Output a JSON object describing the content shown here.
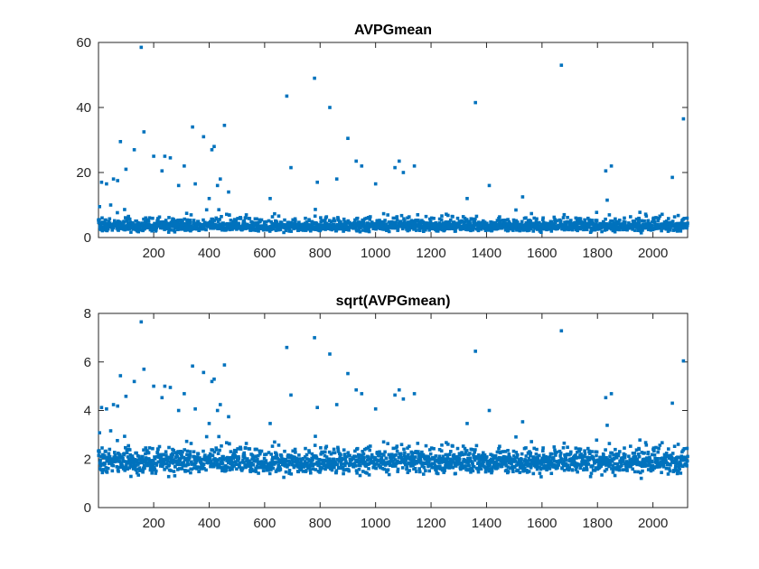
{
  "chart_data": [
    {
      "type": "scatter",
      "title": "AVPGmean",
      "xlabel": "",
      "ylabel": "",
      "xlim": [
        1,
        2125
      ],
      "ylim": [
        0,
        60
      ],
      "xticks": [
        200,
        400,
        600,
        800,
        1000,
        1200,
        1400,
        1600,
        1800,
        2000
      ],
      "yticks": [
        0,
        20,
        40,
        60
      ],
      "grid": false,
      "marker_color": "#0072BD",
      "n_points": 2125,
      "baseline": {
        "typical_range": [
          1.5,
          6.5
        ],
        "center": 3.6
      },
      "outliers": [
        {
          "x": 5,
          "y": 9.5
        },
        {
          "x": 12,
          "y": 17
        },
        {
          "x": 30,
          "y": 16.5
        },
        {
          "x": 45,
          "y": 10
        },
        {
          "x": 55,
          "y": 18
        },
        {
          "x": 70,
          "y": 17.5
        },
        {
          "x": 80,
          "y": 29.5
        },
        {
          "x": 100,
          "y": 21
        },
        {
          "x": 130,
          "y": 27
        },
        {
          "x": 155,
          "y": 58.5
        },
        {
          "x": 165,
          "y": 32.5
        },
        {
          "x": 200,
          "y": 25
        },
        {
          "x": 230,
          "y": 20.5
        },
        {
          "x": 240,
          "y": 25
        },
        {
          "x": 260,
          "y": 24.5
        },
        {
          "x": 290,
          "y": 16
        },
        {
          "x": 310,
          "y": 22
        },
        {
          "x": 340,
          "y": 34
        },
        {
          "x": 350,
          "y": 16.5
        },
        {
          "x": 380,
          "y": 31
        },
        {
          "x": 400,
          "y": 12
        },
        {
          "x": 410,
          "y": 27
        },
        {
          "x": 418,
          "y": 28
        },
        {
          "x": 430,
          "y": 16
        },
        {
          "x": 440,
          "y": 18
        },
        {
          "x": 455,
          "y": 34.5
        },
        {
          "x": 470,
          "y": 14
        },
        {
          "x": 620,
          "y": 12
        },
        {
          "x": 680,
          "y": 43.5
        },
        {
          "x": 695,
          "y": 21.5
        },
        {
          "x": 780,
          "y": 49
        },
        {
          "x": 790,
          "y": 17
        },
        {
          "x": 835,
          "y": 40
        },
        {
          "x": 860,
          "y": 18
        },
        {
          "x": 900,
          "y": 30.5
        },
        {
          "x": 930,
          "y": 23.5
        },
        {
          "x": 950,
          "y": 22
        },
        {
          "x": 1000,
          "y": 16.5
        },
        {
          "x": 1070,
          "y": 21.5
        },
        {
          "x": 1085,
          "y": 23.5
        },
        {
          "x": 1100,
          "y": 20
        },
        {
          "x": 1140,
          "y": 22
        },
        {
          "x": 1330,
          "y": 12
        },
        {
          "x": 1360,
          "y": 41.5
        },
        {
          "x": 1410,
          "y": 16
        },
        {
          "x": 1530,
          "y": 12.5
        },
        {
          "x": 1670,
          "y": 53
        },
        {
          "x": 1830,
          "y": 20.5
        },
        {
          "x": 1835,
          "y": 11.5
        },
        {
          "x": 1850,
          "y": 22
        },
        {
          "x": 2070,
          "y": 18.5
        },
        {
          "x": 2110,
          "y": 36.5
        }
      ]
    },
    {
      "type": "scatter",
      "title": "sqrt(AVPGmean)",
      "xlabel": "",
      "ylabel": "",
      "xlim": [
        1,
        2125
      ],
      "ylim": [
        0,
        8
      ],
      "xticks": [
        200,
        400,
        600,
        800,
        1000,
        1200,
        1400,
        1600,
        1800,
        2000
      ],
      "yticks": [
        0,
        2,
        4,
        6,
        8
      ],
      "grid": false,
      "marker_color": "#0072BD",
      "n_points": 2125,
      "transform_of_panel": 0
    }
  ]
}
